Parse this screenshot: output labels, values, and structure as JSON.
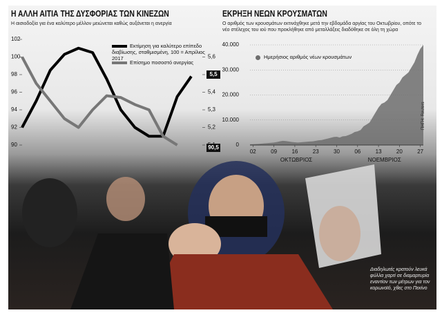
{
  "chart_data": [
    {
      "type": "line",
      "title": "Η ΑΛΛΗ ΑΙΤΙΑ ΤΗΣ ΔΥΣΦΟΡΙΑΣ ΤΩΝ ΚΙΝΕΖΩΝ",
      "subtitle": "Η αισιοδοξία για ένα καλύτερο μέλλον μειώνεται καθώς αυξάνεται η ανεργία",
      "categories": [
        null,
        null,
        null,
        null,
        null,
        null,
        null,
        null,
        null,
        null,
        null,
        null,
        null
      ],
      "series": [
        {
          "name": "Εκτίμηση για καλύτερο επίπεδο διαβίωσης, σταθμισμένη, 100 = Απρίλιος 2017",
          "color": "#000000",
          "values": [
            92,
            95,
            98.5,
            100.3,
            101,
            100.5,
            97.5,
            94,
            92,
            91,
            91,
            95.5,
            97.8
          ]
        },
        {
          "name": "Επίσημο ποσοστό ανεργίας",
          "color": "#777777",
          "axis": "y2",
          "values": [
            5.6,
            5.45,
            5.35,
            5.25,
            5.2,
            5.3,
            5.38,
            5.37,
            5.33,
            5.3,
            5.15,
            5.1,
            null
          ]
        }
      ],
      "ylim": [
        90,
        102
      ],
      "yticks": [
        90,
        92,
        94,
        96,
        98,
        100,
        102
      ],
      "y2lim": [
        5.1,
        5.7
      ],
      "y2ticks": [
        {
          "value": 5.1,
          "label": "5,1"
        },
        {
          "value": 5.2,
          "label": "5,2"
        },
        {
          "value": 5.3,
          "label": "5,3"
        },
        {
          "value": 5.4,
          "label": "5,4"
        },
        {
          "value": 5.5,
          "label": "5,5"
        },
        {
          "value": 5.6,
          "label": "5,6"
        }
      ],
      "annotations": [
        "5,5",
        "90,5"
      ]
    },
    {
      "type": "area",
      "title": "ΕΚΡΗΞΗ ΝΕΩΝ ΚΡΟΥΣΜΑΤΩΝ",
      "subtitle": "Ο αριθμός των κρουσμάτων εκτινάχθηκε μετά την εβδομάδα αργίας του Οκτωβρίου, οπότε το νέο στέλεχος του ιού που προκλήθηκε από μεταλλάξεις διαδόθηκε σε όλη τη χώρα",
      "categories": [
        null,
        "02",
        null,
        null,
        null,
        null,
        null,
        null,
        "09",
        null,
        null,
        null,
        null,
        null,
        null,
        "16",
        null,
        null,
        null,
        null,
        null,
        null,
        "23",
        null,
        null,
        null,
        null,
        null,
        null,
        "30",
        null,
        null,
        null,
        null,
        null,
        null,
        "06",
        null,
        null,
        null,
        null,
        null,
        null,
        "13",
        null,
        null,
        null,
        null,
        null,
        null,
        "20",
        null,
        null,
        null,
        null,
        null,
        null,
        "27",
        null
      ],
      "x_groups": [
        "ΟΚΤΩΒΡΙΟΣ",
        "ΝΟΕΜΒΡΙΟΣ"
      ],
      "series": [
        {
          "name": "Ημερήσιος αριθμός νέων κρουσμάτων",
          "color": "#6e6e6e",
          "values": [
            300,
            350,
            400,
            500,
            600,
            700,
            800,
            900,
            1000,
            1200,
            1500,
            1700,
            1600,
            1400,
            1200,
            1100,
            1000,
            1100,
            1200,
            1300,
            1400,
            1500,
            1700,
            1900,
            2000,
            2300,
            2600,
            2900,
            3200,
            3300,
            3000,
            3500,
            3600,
            4000,
            4500,
            5200,
            5500,
            6000,
            7500,
            8200,
            9000,
            11000,
            13000,
            15000,
            16500,
            17000,
            18000,
            20000,
            22000,
            24000,
            25000,
            27000,
            28000,
            29000,
            31000,
            33000,
            36000,
            38500,
            40000
          ]
        }
      ],
      "ylim": [
        0,
        40000
      ],
      "yticks": [
        0,
        {
          "value": 10000,
          "label": "10.000"
        },
        {
          "value": 20000,
          "label": "20.000"
        },
        {
          "value": 30000,
          "label": "30.000"
        },
        {
          "value": 40000,
          "label": "40.000"
        }
      ]
    }
  ],
  "source": "ΠΗΓΗ: Reuters",
  "photo_caption": "Διαδηλωτές κρατούν λευκά φύλλα χαρτί σε διαμαρτυρία εναντίον των μέτρων για τον κορωνοϊό, χθες στο Πεκίνο"
}
